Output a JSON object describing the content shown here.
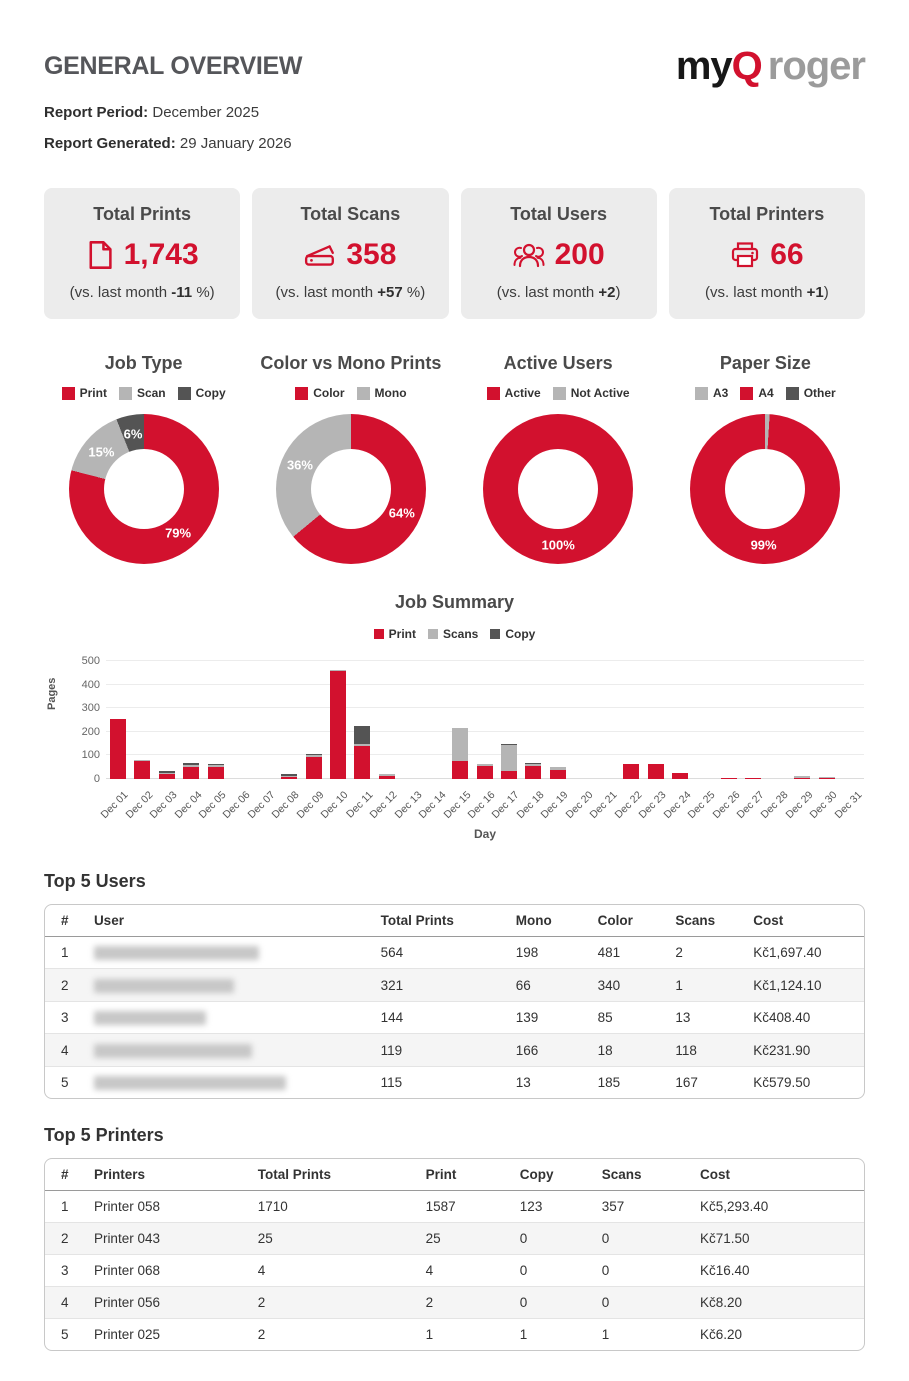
{
  "header": {
    "title": "GENERAL OVERVIEW",
    "report_period_label": "Report Period:",
    "report_period_value": "December 2025",
    "report_generated_label": "Report Generated:",
    "report_generated_value": "29 January 2026",
    "logo": {
      "my": "my",
      "q": "Q",
      "roger": "roger"
    }
  },
  "colors": {
    "brand_red": "#d2112e",
    "light_gray": "#b5b5b5",
    "dark_gray": "#545454",
    "title_gray": "#55565a"
  },
  "stat_cards": [
    {
      "icon": "document-icon",
      "title": "Total Prints",
      "value": "1,743",
      "note_prefix": "(vs. last month ",
      "delta": "-11",
      "note_suffix": " %)"
    },
    {
      "icon": "scanner-icon",
      "title": "Total Scans",
      "value": "358",
      "note_prefix": "(vs. last month ",
      "delta": "+57",
      "note_suffix": " %)"
    },
    {
      "icon": "users-icon",
      "title": "Total Users",
      "value": "200",
      "note_prefix": "(vs. last month ",
      "delta": "+2",
      "note_suffix": ")"
    },
    {
      "icon": "printer-icon",
      "title": "Total Printers",
      "value": "66",
      "note_prefix": "(vs. last month ",
      "delta": "+1",
      "note_suffix": ")"
    }
  ],
  "chart_data": [
    {
      "type": "pie",
      "title": "Job Type",
      "labels": [
        "Print",
        "Scan",
        "Copy"
      ],
      "values": [
        79,
        15,
        6
      ],
      "colors": [
        "#d2112e",
        "#b5b5b5",
        "#545454"
      ],
      "unit": "%",
      "hole": 0.53,
      "legend_position": "top"
    },
    {
      "type": "pie",
      "title": "Color vs Mono Prints",
      "labels": [
        "Color",
        "Mono"
      ],
      "values": [
        64,
        36
      ],
      "colors": [
        "#d2112e",
        "#b5b5b5"
      ],
      "unit": "%",
      "hole": 0.53,
      "legend_position": "top"
    },
    {
      "type": "pie",
      "title": "Active Users",
      "labels": [
        "Active",
        "Not Active"
      ],
      "values": [
        100,
        0
      ],
      "colors": [
        "#d2112e",
        "#b5b5b5"
      ],
      "unit": "%",
      "hole": 0.53,
      "legend_position": "top"
    },
    {
      "type": "pie",
      "title": "Paper Size",
      "labels": [
        "A3",
        "A4",
        "Other"
      ],
      "values": [
        1,
        99,
        0
      ],
      "colors": [
        "#b5b5b5",
        "#d2112e",
        "#545454"
      ],
      "unit": "%",
      "hole": 0.53,
      "legend_position": "top"
    },
    {
      "type": "bar",
      "stacked": true,
      "title": "Job Summary",
      "xlabel": "Day",
      "ylabel": "Pages",
      "ylim": [
        0,
        500
      ],
      "yticks": [
        0,
        100,
        200,
        300,
        400,
        500
      ],
      "grid": true,
      "legend_position": "top",
      "categories": [
        "Dec 01",
        "Dec 02",
        "Dec 03",
        "Dec 04",
        "Dec 05",
        "Dec 06",
        "Dec 07",
        "Dec 08",
        "Dec 09",
        "Dec 10",
        "Dec 11",
        "Dec 12",
        "Dec 13",
        "Dec 14",
        "Dec 15",
        "Dec 16",
        "Dec 17",
        "Dec 18",
        "Dec 19",
        "Dec 20",
        "Dec 21",
        "Dec 22",
        "Dec 23",
        "Dec 24",
        "Dec 25",
        "Dec 26",
        "Dec 27",
        "Dec 28",
        "Dec 29",
        "Dec 30",
        "Dec 31"
      ],
      "series": [
        {
          "name": "Print",
          "color": "#d2112e",
          "values": [
            255,
            75,
            22,
            52,
            50,
            0,
            0,
            8,
            92,
            458,
            140,
            12,
            0,
            0,
            75,
            55,
            35,
            55,
            40,
            0,
            0,
            65,
            65,
            25,
            0,
            5,
            3,
            0,
            6,
            2,
            0
          ]
        },
        {
          "name": "Scans",
          "color": "#b5b5b5",
          "values": [
            0,
            5,
            4,
            6,
            8,
            0,
            0,
            2,
            10,
            4,
            10,
            8,
            0,
            0,
            143,
            10,
            110,
            8,
            12,
            0,
            0,
            0,
            0,
            0,
            0,
            0,
            0,
            0,
            8,
            2,
            0
          ]
        },
        {
          "name": "Copy",
          "color": "#545454",
          "values": [
            0,
            0,
            6,
            10,
            4,
            0,
            0,
            10,
            3,
            0,
            75,
            0,
            0,
            0,
            0,
            0,
            5,
            5,
            0,
            0,
            0,
            0,
            0,
            0,
            0,
            0,
            0,
            0,
            0,
            0,
            0
          ]
        }
      ]
    }
  ],
  "top_users": {
    "title": "Top 5 Users",
    "columns": [
      "#",
      "User",
      "Total Prints",
      "Mono",
      "Color",
      "Scans",
      "Cost"
    ],
    "user_names_redacted": true,
    "rows": [
      [
        "1",
        null,
        "564",
        "198",
        "481",
        "2",
        "Kč1,697.40"
      ],
      [
        "2",
        null,
        "321",
        "66",
        "340",
        "1",
        "Kč1,124.10"
      ],
      [
        "3",
        null,
        "144",
        "139",
        "85",
        "13",
        "Kč408.40"
      ],
      [
        "4",
        null,
        "119",
        "166",
        "18",
        "118",
        "Kč231.90"
      ],
      [
        "5",
        null,
        "115",
        "13",
        "185",
        "167",
        "Kč579.50"
      ]
    ]
  },
  "top_printers": {
    "title": "Top 5 Printers",
    "columns": [
      "#",
      "Printers",
      "Total Prints",
      "Print",
      "Copy",
      "Scans",
      "Cost"
    ],
    "rows": [
      [
        "1",
        "Printer 058",
        "1710",
        "1587",
        "123",
        "357",
        "Kč5,293.40"
      ],
      [
        "2",
        "Printer 043",
        "25",
        "25",
        "0",
        "0",
        "Kč71.50"
      ],
      [
        "3",
        "Printer 068",
        "4",
        "4",
        "0",
        "0",
        "Kč16.40"
      ],
      [
        "4",
        "Printer 056",
        "2",
        "2",
        "0",
        "0",
        "Kč8.20"
      ],
      [
        "5",
        "Printer 025",
        "2",
        "1",
        "1",
        "1",
        "Kč6.20"
      ]
    ]
  }
}
